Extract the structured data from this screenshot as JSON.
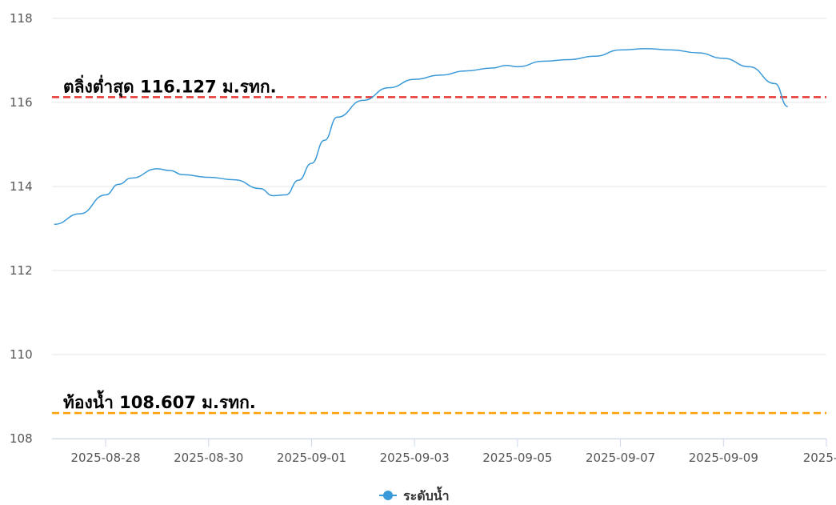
{
  "chart_data": {
    "type": "line",
    "x_tick_labels": [
      "2025-08-28",
      "2025-08-30",
      "2025-09-01",
      "2025-09-03",
      "2025-09-05",
      "2025-09-07",
      "2025-09-09",
      "2025-…"
    ],
    "y_ticks": [
      108,
      110,
      112,
      114,
      116,
      118
    ],
    "ylim": [
      108,
      118
    ],
    "grid": true,
    "legend_position": "bottom-center",
    "series": [
      {
        "name": "ระดับน้ำ",
        "color": "#3a9ad9",
        "x": [
          "2025-08-27T00:00",
          "2025-08-27T12:00",
          "2025-08-28T00:00",
          "2025-08-28T06:00",
          "2025-08-28T12:00",
          "2025-08-29T00:00",
          "2025-08-29T06:00",
          "2025-08-29T12:00",
          "2025-08-30T00:00",
          "2025-08-30T12:00",
          "2025-08-31T00:00",
          "2025-08-31T06:00",
          "2025-08-31T12:00",
          "2025-08-31T18:00",
          "2025-09-01T00:00",
          "2025-09-01T06:00",
          "2025-09-01T12:00",
          "2025-09-02T00:00",
          "2025-09-02T12:00",
          "2025-09-03T00:00",
          "2025-09-03T12:00",
          "2025-09-04T00:00",
          "2025-09-04T12:00",
          "2025-09-04T19:00",
          "2025-09-05T00:00",
          "2025-09-05T12:00",
          "2025-09-06T00:00",
          "2025-09-06T12:00",
          "2025-09-07T00:00",
          "2025-09-07T12:00",
          "2025-09-08T00:00",
          "2025-09-08T12:00",
          "2025-09-09T00:00",
          "2025-09-09T12:00",
          "2025-09-10T00:00",
          "2025-09-10T06:00"
        ],
        "values": [
          113.1,
          113.35,
          113.8,
          114.05,
          114.2,
          114.42,
          114.38,
          114.28,
          114.22,
          114.16,
          113.95,
          113.78,
          113.8,
          114.15,
          114.55,
          115.1,
          115.65,
          116.05,
          116.35,
          116.55,
          116.65,
          116.75,
          116.82,
          116.88,
          116.85,
          116.98,
          117.02,
          117.1,
          117.25,
          117.28,
          117.25,
          117.18,
          117.05,
          116.85,
          116.45,
          115.9
        ]
      }
    ],
    "reference_lines": [
      {
        "label": "ตลิ่งต่ำสุด 116.127 ม.รทก.",
        "value": 116.127,
        "color": "#e53935"
      },
      {
        "label": "ท้องน้ำ 108.607 ม.รทก.",
        "value": 108.607,
        "color": "#ffa000"
      }
    ],
    "grid_color": "#e6e6e6",
    "axis_color": "#ccd6eb"
  }
}
